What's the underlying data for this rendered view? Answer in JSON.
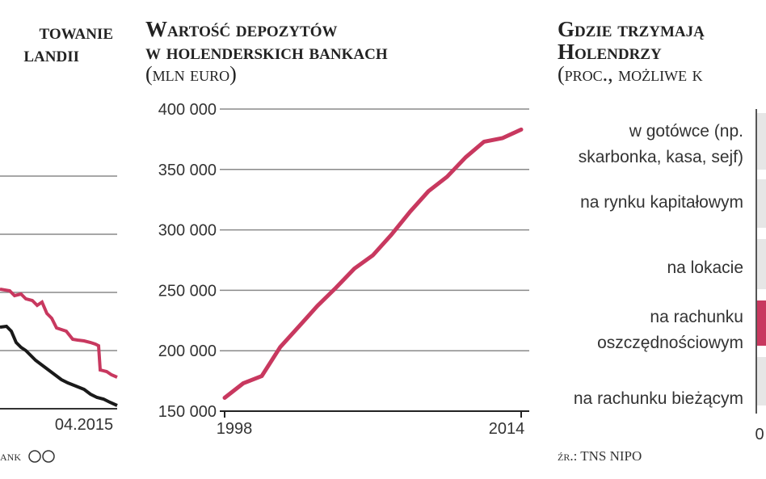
{
  "chart_data": [
    {
      "type": "line",
      "title": [
        "towanie",
        "landii"
      ],
      "x_end_label": "04.2015",
      "source": "ank"
    },
    {
      "type": "line",
      "title": [
        "Wartość depozytów",
        "w holenderskich bankach"
      ],
      "subtitle": "(mln euro)",
      "x": [
        1998,
        1999,
        2000,
        2001,
        2002,
        2003,
        2004,
        2005,
        2006,
        2007,
        2008,
        2009,
        2010,
        2011,
        2012,
        2013,
        2014
      ],
      "series": [
        {
          "color": "#c8385f",
          "values": [
            161000,
            173000,
            179000,
            203000,
            220000,
            237000,
            252000,
            268000,
            279000,
            296000,
            315000,
            332000,
            344000,
            360000,
            373000,
            376000,
            383000
          ]
        }
      ],
      "xlim": [
        1998,
        2014
      ],
      "xticks": [
        1998,
        2014
      ],
      "ylim": [
        150000,
        400000
      ],
      "yticks": [
        {
          "value": 150000,
          "label": "150 000"
        },
        {
          "value": 200000,
          "label": "200 000"
        },
        {
          "value": 250000,
          "label": "250 000"
        },
        {
          "value": 300000,
          "label": "300 000"
        },
        {
          "value": 350000,
          "label": "350 000"
        },
        {
          "value": 400000,
          "label": "400 000"
        }
      ],
      "grid": true
    },
    {
      "type": "bar",
      "title": [
        "Gdzie trzymają",
        "Holendrzy",
        "(proc., możliwe k"
      ],
      "categories": [
        [
          "w gotówce (np.",
          "skarbonka, kasa, sejf)"
        ],
        [
          "na rynku kapitałowym"
        ],
        [
          "na lokacie"
        ],
        [
          "na rachunku",
          "oszczędnościowym"
        ],
        [
          "na rachunku bieżącym"
        ]
      ],
      "xticks": [
        0
      ],
      "source": "źr.: TNS NIPO"
    }
  ]
}
